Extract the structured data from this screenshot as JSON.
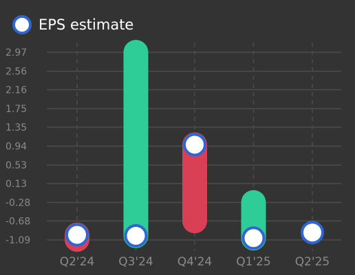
{
  "chart_data": {
    "type": "line",
    "categories": [
      "Q2'24",
      "Q3'24",
      "Q4'24",
      "Q1'25",
      "Q2'25"
    ],
    "yticks": [
      "2.97",
      "2.56",
      "2.16",
      "1.75",
      "1.35",
      "0.94",
      "0.53",
      "0.13",
      "-0.28",
      "-0.68",
      "-1.09"
    ],
    "ylim": [
      -1.09,
      2.97
    ],
    "legend_position": "top-left",
    "grid": true,
    "series": [
      {
        "name": "EPS estimate",
        "role": "estimate",
        "color": "#ffffff",
        "values": [
          -0.98,
          -1.0,
          0.97,
          -1.05,
          -0.93
        ]
      },
      {
        "role": "actual",
        "values": [
          -1.08,
          2.97,
          -0.68,
          -0.28,
          null
        ]
      }
    ],
    "colors": {
      "background": "#333333",
      "beat": "#2ecc96",
      "miss": "#d94055",
      "marker_stroke": "#2f66d0",
      "grid": "#4d4d4d",
      "tick_text": "#8a8a8a",
      "legend_text": "#ffffff"
    }
  }
}
